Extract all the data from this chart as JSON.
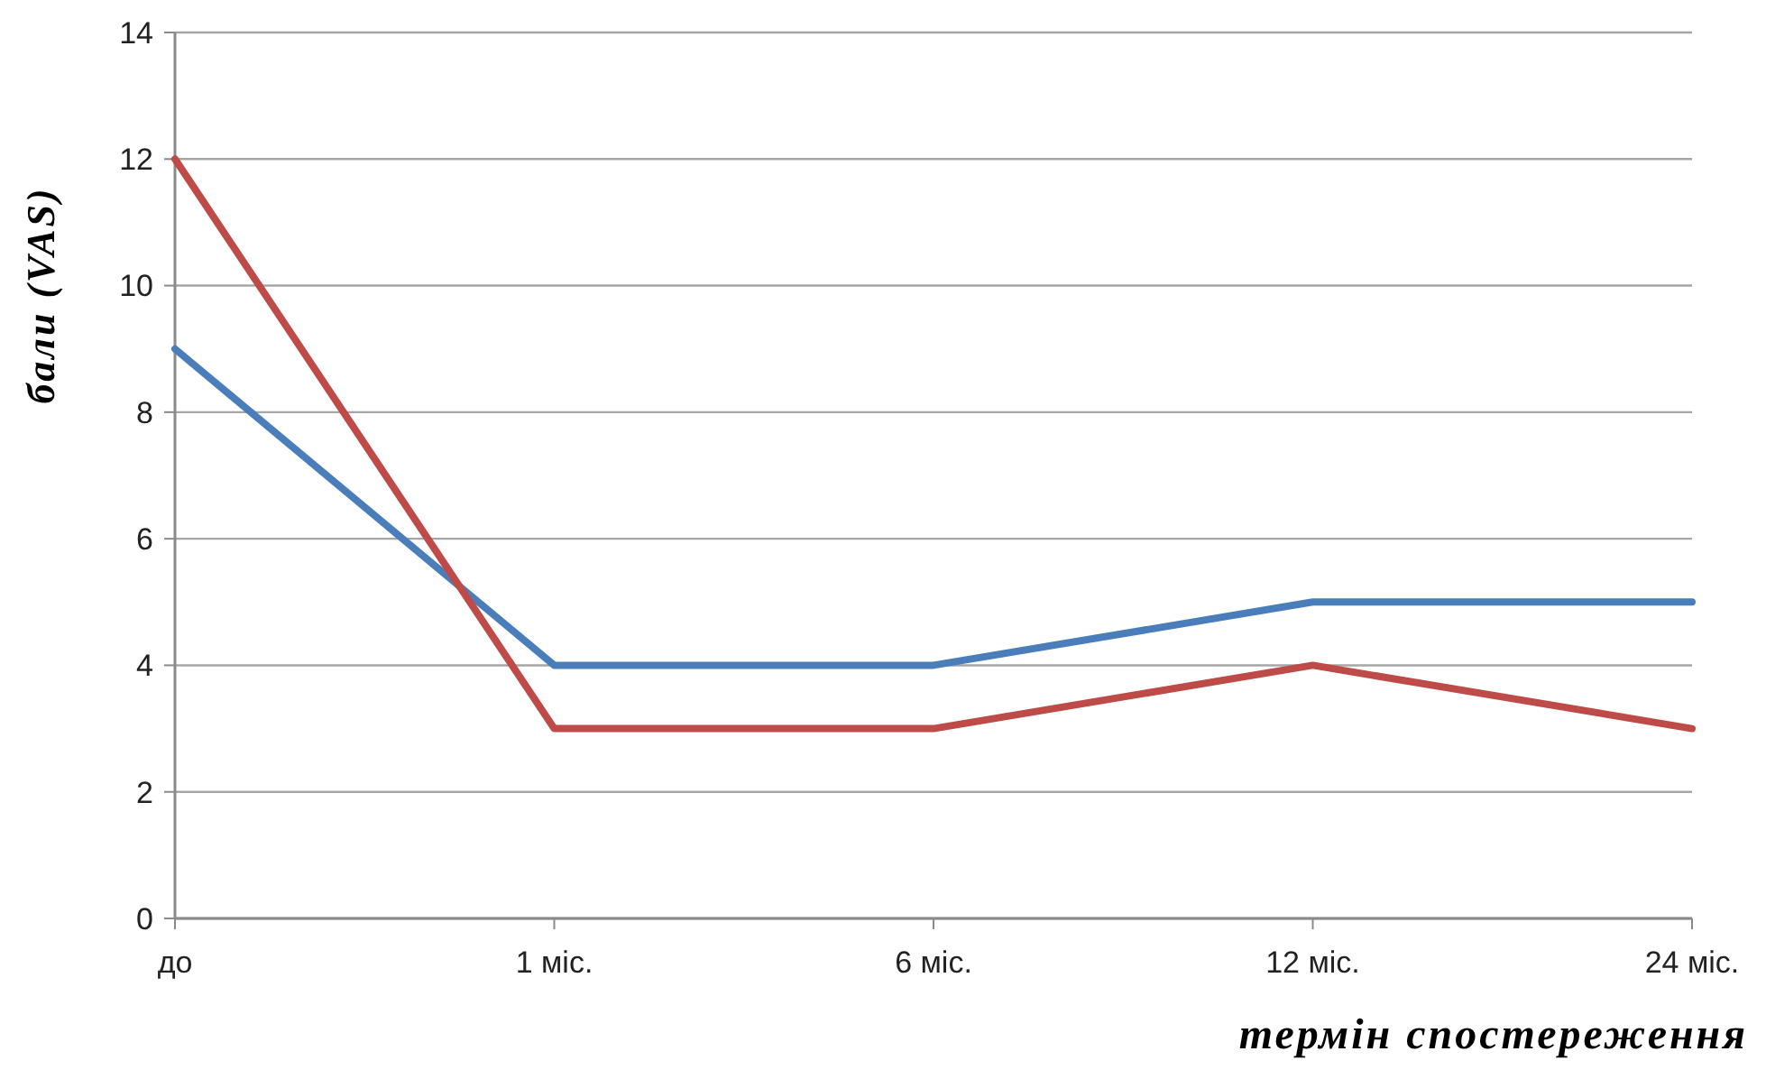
{
  "chart_data": {
    "type": "line",
    "xlabel": "термін спостереження",
    "ylabel": "бали (VAS)",
    "categories": [
      "до",
      "1 міс.",
      "6 міс.",
      "12 міс.",
      "24 міс."
    ],
    "series": [
      {
        "color": "#4a7ebb",
        "values": [
          9,
          4,
          4,
          5,
          5
        ]
      },
      {
        "color": "#be4b48",
        "values": [
          12,
          3,
          3,
          4,
          3
        ]
      }
    ],
    "ylim": [
      0,
      14
    ],
    "yticks": [
      0,
      2,
      4,
      6,
      8,
      10,
      12,
      14
    ],
    "grid": "y",
    "marker": "none",
    "line_style": "solid"
  }
}
